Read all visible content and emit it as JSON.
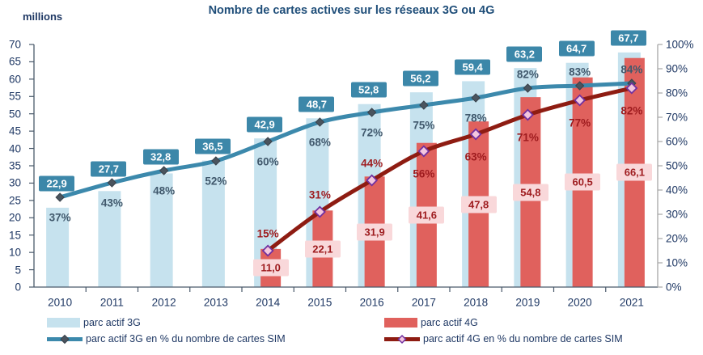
{
  "title": "Nombre de cartes actives sur les réseaux 3G ou 4G",
  "y_left_label": "millions",
  "legend": {
    "bar_3g": "parc actif 3G",
    "line_3g": "parc actif 3G en % du nombre de cartes SIM",
    "bar_4g": "parc actif 4G",
    "line_4g": "parc actif 4G en % du nombre de cartes SIM"
  },
  "colors": {
    "title_text": "#1f4e79",
    "axis_text": "#1f3864",
    "bar_3g": "#c6e2ee",
    "bar_4g": "#e0615d",
    "line_3g": "#3c89ac",
    "line_4g": "#8e1c12",
    "marker_3g_fill": "#4a545e",
    "marker_3g_stroke": "#39424b",
    "marker_4g_fill": "#f4c6de",
    "marker_4g_stroke": "#7030a0",
    "label_box_3g_bg": "#3c87a9",
    "label_box_3g_text": "#ffffff",
    "label_box_4g_bg": "#f9d8da",
    "label_box_4g_text": "#9e1b1e",
    "pct_3g_text": "#40586c",
    "pct_4g_text": "#9e1b1e",
    "axis_line": "#4a5a6b",
    "right_axis_line": "#a6a6a6"
  },
  "chart_data": {
    "type": "combo-bar-line",
    "categories": [
      "2010",
      "2011",
      "2012",
      "2013",
      "2014",
      "2015",
      "2016",
      "2017",
      "2018",
      "2019",
      "2020",
      "2021"
    ],
    "left_axis": {
      "label": "millions",
      "min": 0,
      "max": 70,
      "step": 5,
      "tick_labels": [
        "0",
        "5",
        "10",
        "15",
        "20",
        "25",
        "30",
        "35",
        "40",
        "45",
        "50",
        "55",
        "60",
        "65",
        "70"
      ]
    },
    "right_axis": {
      "min": 0,
      "max": 100,
      "step": 10,
      "tick_labels": [
        "0%",
        "10%",
        "20%",
        "30%",
        "40%",
        "50%",
        "60%",
        "70%",
        "80%",
        "90%",
        "100%"
      ]
    },
    "series": [
      {
        "name": "parc actif 3G",
        "type": "bar",
        "axis": "left",
        "values": [
          22.9,
          27.7,
          32.8,
          36.5,
          42.9,
          48.7,
          52.8,
          56.2,
          59.4,
          63.2,
          64.7,
          67.7
        ],
        "labels": [
          "22,9",
          "27,7",
          "32,8",
          "36,5",
          "42,9",
          "48,7",
          "52,8",
          "56,2",
          "59,4",
          "63,2",
          "64,7",
          "67,7"
        ]
      },
      {
        "name": "parc actif 4G",
        "type": "bar",
        "axis": "left",
        "values": [
          null,
          null,
          null,
          null,
          11.0,
          22.1,
          31.9,
          41.6,
          47.8,
          54.8,
          60.5,
          66.1
        ],
        "labels": [
          null,
          null,
          null,
          null,
          "11,0",
          "22,1",
          "31,9",
          "41,6",
          "47,8",
          "54,8",
          "60,5",
          "66,1"
        ]
      },
      {
        "name": "parc actif 3G en % du nombre de cartes SIM",
        "type": "line",
        "axis": "right",
        "values": [
          37,
          43,
          48,
          52,
          60,
          68,
          72,
          75,
          78,
          82,
          83,
          84
        ],
        "labels": [
          "37%",
          "43%",
          "48%",
          "52%",
          "60%",
          "68%",
          "72%",
          "75%",
          "78%",
          "82%",
          "83%",
          "84%"
        ]
      },
      {
        "name": "parc actif 4G en % du nombre de cartes SIM",
        "type": "line",
        "axis": "right",
        "values": [
          null,
          null,
          null,
          null,
          15,
          31,
          44,
          56,
          63,
          71,
          77,
          82
        ],
        "labels": [
          null,
          null,
          null,
          null,
          "15%",
          "31%",
          "44%",
          "56%",
          "63%",
          "71%",
          "77%",
          "82%"
        ]
      }
    ]
  }
}
